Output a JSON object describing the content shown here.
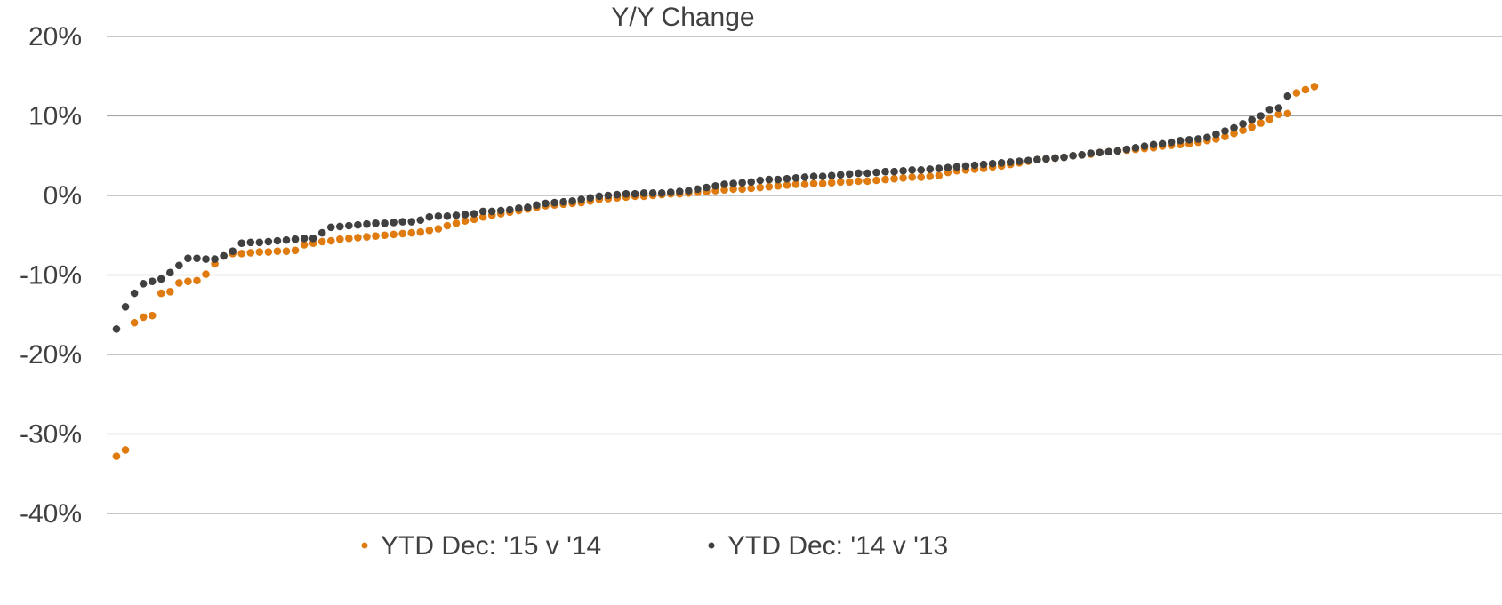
{
  "chart_data": {
    "type": "scatter",
    "title": "Y/Y Change",
    "categories": [
      null,
      null,
      null,
      null,
      null,
      null,
      null,
      null,
      null,
      null,
      null,
      null,
      null,
      null,
      null,
      null,
      null,
      null,
      null,
      null,
      null,
      null,
      null,
      null,
      null,
      null,
      null,
      null,
      null,
      null,
      null,
      null,
      null,
      null,
      null,
      null,
      null,
      null,
      null,
      null,
      null,
      null,
      null,
      null,
      null,
      null,
      null,
      null,
      null,
      null,
      null,
      null,
      null,
      null,
      null,
      null,
      null,
      null,
      null,
      null,
      null,
      null,
      null,
      null,
      null,
      null,
      null,
      null,
      null,
      null,
      null,
      null,
      null,
      null,
      null,
      null,
      null,
      null,
      null,
      null,
      null,
      null,
      null,
      null,
      null,
      null,
      null,
      null,
      null,
      null,
      null,
      null,
      null,
      null,
      null,
      null,
      null,
      null,
      null,
      null,
      null,
      null,
      null,
      null,
      null,
      null,
      null,
      null,
      null,
      null,
      null,
      null,
      null,
      null,
      null,
      null,
      null,
      null,
      null,
      null,
      null,
      null,
      null,
      null,
      null,
      null,
      null,
      null,
      null,
      null,
      null,
      null,
      null,
      null,
      null
    ],
    "series": [
      {
        "name": "YTD Dec: '15 v '14",
        "color": "#e07b10",
        "values": [
          -32.8,
          -32,
          -16,
          -15.3,
          -15.1,
          -12.3,
          -12.1,
          -11,
          -10.8,
          -10.7,
          -9.9,
          -8.6,
          -7.6,
          -7.3,
          -7.3,
          -7.2,
          -7.1,
          -7.1,
          -7.0,
          -7.0,
          -6.9,
          -6.2,
          -6.0,
          -5.8,
          -5.7,
          -5.5,
          -5.4,
          -5.3,
          -5.2,
          -5.1,
          -5.0,
          -4.9,
          -4.8,
          -4.7,
          -4.6,
          -4.4,
          -4.2,
          -3.8,
          -3.5,
          -3.2,
          -3.0,
          -2.7,
          -2.5,
          -2.3,
          -2.1,
          -1.9,
          -1.7,
          -1.5,
          -1.3,
          -1.2,
          -1.1,
          -1.0,
          -0.9,
          -0.7,
          -0.5,
          -0.4,
          -0.3,
          -0.2,
          -0.1,
          -0.1,
          0,
          0.1,
          0.2,
          0.2,
          0.3,
          0.4,
          0.5,
          0.6,
          0.7,
          0.8,
          0.8,
          0.9,
          1.0,
          1.1,
          1.2,
          1.3,
          1.4,
          1.4,
          1.5,
          1.5,
          1.6,
          1.7,
          1.7,
          1.8,
          1.8,
          1.9,
          2.0,
          2.1,
          2.2,
          2.3,
          2.3,
          2.4,
          2.5,
          2.9,
          3.1,
          3.2,
          3.3,
          3.4,
          3.6,
          3.7,
          3.9,
          4.1,
          4.3,
          4.5,
          4.6,
          4.7,
          4.8,
          5.0,
          5.1,
          5.2,
          5.4,
          5.5,
          5.6,
          5.7,
          5.8,
          5.9,
          6.0,
          6.2,
          6.3,
          6.4,
          6.5,
          6.7,
          6.9,
          7.1,
          7.4,
          7.8,
          8.2,
          8.6,
          9.1,
          9.6,
          10.2,
          10.3,
          12.9,
          13.3,
          13.7
        ]
      },
      {
        "name": "YTD Dec: '14 v '13",
        "color": "#404040",
        "values": [
          -16.8,
          -14,
          -12.3,
          -11.1,
          -10.8,
          -10.5,
          -9.7,
          -8.8,
          -7.9,
          -7.9,
          -8.0,
          -8.0,
          -7.6,
          -7.0,
          -6.0,
          -5.9,
          -5.9,
          -5.8,
          -5.7,
          -5.6,
          -5.5,
          -5.4,
          -5.4,
          -4.7,
          -4.0,
          -3.9,
          -3.8,
          -3.7,
          -3.6,
          -3.5,
          -3.5,
          -3.4,
          -3.3,
          -3.3,
          -3.1,
          -2.7,
          -2.6,
          -2.6,
          -2.5,
          -2.4,
          -2.3,
          -2.0,
          -2.0,
          -1.9,
          -1.8,
          -1.6,
          -1.5,
          -1.2,
          -1.0,
          -0.9,
          -0.8,
          -0.7,
          -0.5,
          -0.3,
          -0.1,
          0.0,
          0.1,
          0.2,
          0.2,
          0.3,
          0.3,
          0.3,
          0.4,
          0.5,
          0.6,
          0.8,
          1.0,
          1.2,
          1.4,
          1.5,
          1.6,
          1.7,
          1.9,
          2.0,
          2.0,
          2.1,
          2.2,
          2.3,
          2.4,
          2.4,
          2.5,
          2.6,
          2.7,
          2.8,
          2.8,
          2.9,
          3.0,
          3.0,
          3.1,
          3.2,
          3.2,
          3.3,
          3.4,
          3.5,
          3.6,
          3.7,
          3.8,
          3.9,
          4.0,
          4.1,
          4.2,
          4.3,
          4.4,
          4.5,
          4.6,
          4.7,
          4.8,
          5.0,
          5.1,
          5.3,
          5.4,
          5.5,
          5.6,
          5.8,
          6.0,
          6.2,
          6.4,
          6.5,
          6.7,
          6.9,
          7.0,
          7.1,
          7.3,
          7.7,
          8.1,
          8.5,
          9.0,
          9.5,
          10.0,
          10.8,
          11.0,
          12.5,
          null,
          null,
          null
        ]
      }
    ],
    "ylim": [
      -40,
      20
    ],
    "yticks": [
      {
        "value": -40,
        "label": "-40%"
      },
      {
        "value": -30,
        "label": "-30%"
      },
      {
        "value": -20,
        "label": "-20%"
      },
      {
        "value": -10,
        "label": "-10%"
      },
      {
        "value": 0,
        "label": "0%"
      },
      {
        "value": 10,
        "label": "10%"
      },
      {
        "value": 20,
        "label": "20%"
      }
    ],
    "grid": true,
    "legend": "bottom"
  }
}
